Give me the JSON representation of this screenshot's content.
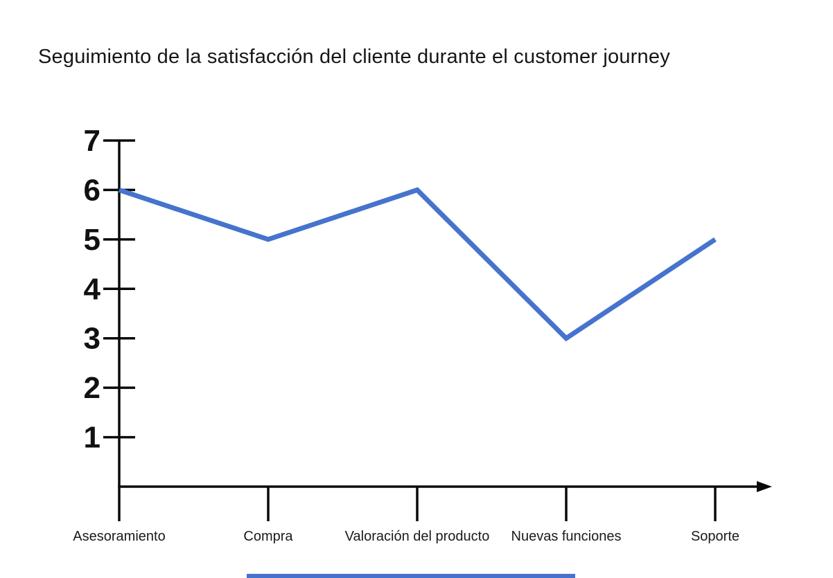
{
  "title": "Seguimiento de la satisfacción del cliente durante el customer journey",
  "colors": {
    "line": "#4673cd",
    "axis": "#0a0a0a",
    "tick_label": "#111111",
    "category_label": "#1a1a1a",
    "accent_bar": "#4673cd",
    "background": "#ffffff"
  },
  "chart_data": {
    "type": "line",
    "title": "Seguimiento de la satisfacción del cliente durante el customer journey",
    "categories": [
      "Asesoramiento",
      "Compra",
      "Valoración del producto",
      "Nuevas funciones",
      "Soporte"
    ],
    "values": [
      6,
      5,
      6,
      3,
      5
    ],
    "xlabel": "",
    "ylabel": "",
    "ylim": [
      0,
      7
    ],
    "yticks": [
      1,
      2,
      3,
      4,
      5,
      6,
      7
    ],
    "grid": false,
    "legend": false,
    "x_axis_arrow": true
  }
}
